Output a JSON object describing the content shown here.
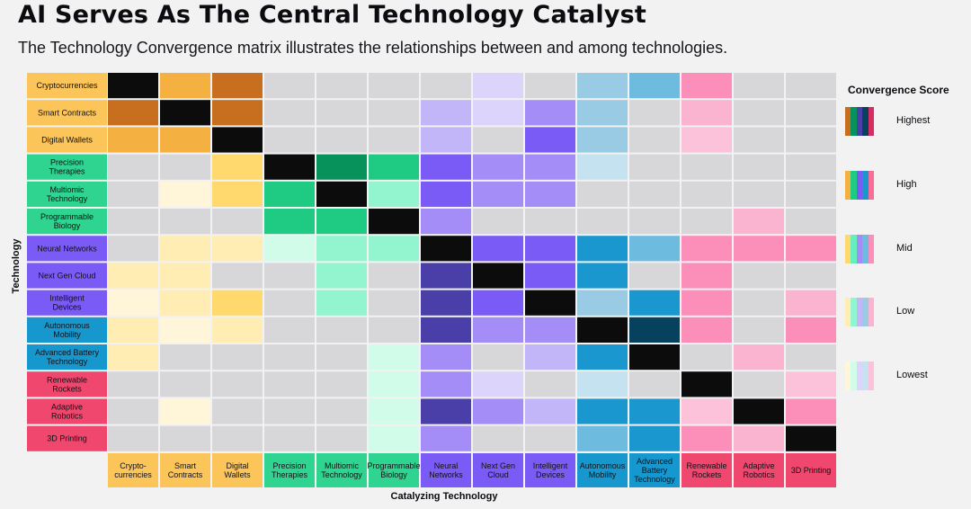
{
  "title": "AI Serves As The Central Technology Catalyst",
  "subtitle": "The Technology Convergence matrix illustrates the relationships between and among technologies.",
  "chart_data": {
    "type": "heatmap",
    "ylabel": "Technology",
    "xlabel": "Catalyzing Technology",
    "rows": [
      {
        "label": "Cryptocurrencies",
        "group": "finance"
      },
      {
        "label": "Smart Contracts",
        "group": "finance"
      },
      {
        "label": "Digital Wallets",
        "group": "finance"
      },
      {
        "label": "Precision Therapies",
        "group": "bio"
      },
      {
        "label": "Multiomic Technology",
        "group": "bio"
      },
      {
        "label": "Programmable Biology",
        "group": "bio"
      },
      {
        "label": "Neural Networks",
        "group": "ai"
      },
      {
        "label": "Next Gen Cloud",
        "group": "ai"
      },
      {
        "label": "Intelligent Devices",
        "group": "ai"
      },
      {
        "label": "Autonomous Mobility",
        "group": "mobility"
      },
      {
        "label": "Advanced Battery Technology",
        "group": "mobility"
      },
      {
        "label": "Renewable Rockets",
        "group": "space"
      },
      {
        "label": "Adaptive Robotics",
        "group": "space"
      },
      {
        "label": "3D Printing",
        "group": "space"
      }
    ],
    "columns": [
      {
        "label": "Crypto- currencies",
        "group": "finance"
      },
      {
        "label": "Smart Contracts",
        "group": "finance"
      },
      {
        "label": "Digital Wallets",
        "group": "finance"
      },
      {
        "label": "Precision Therapies",
        "group": "bio"
      },
      {
        "label": "Multiomic Technology",
        "group": "bio"
      },
      {
        "label": "Programmable Biology",
        "group": "bio"
      },
      {
        "label": "Neural Networks",
        "group": "ai"
      },
      {
        "label": "Next Gen Cloud",
        "group": "ai"
      },
      {
        "label": "Intelligent Devices",
        "group": "ai"
      },
      {
        "label": "Autonomous Mobility",
        "group": "mobility"
      },
      {
        "label": "Advanced Battery Technology",
        "group": "mobility"
      },
      {
        "label": "Renewable Rockets",
        "group": "space"
      },
      {
        "label": "Adaptive Robotics",
        "group": "space"
      },
      {
        "label": "3D Printing",
        "group": "space"
      }
    ],
    "scores": [
      [
        5,
        4,
        5,
        0,
        0,
        0,
        0,
        1,
        0,
        2,
        3,
        3,
        0,
        0
      ],
      [
        5,
        5,
        5,
        0,
        0,
        0,
        2,
        1,
        3,
        2,
        0,
        2,
        0,
        0
      ],
      [
        4,
        4,
        5,
        0,
        0,
        0,
        2,
        0,
        4,
        2,
        0,
        1,
        0,
        0
      ],
      [
        0,
        0,
        3,
        5,
        5,
        4,
        4,
        3,
        3,
        1,
        0,
        0,
        0,
        0
      ],
      [
        0,
        1,
        3,
        4,
        5,
        2,
        4,
        3,
        3,
        0,
        0,
        0,
        0,
        0
      ],
      [
        0,
        0,
        0,
        4,
        4,
        5,
        3,
        0,
        0,
        0,
        0,
        0,
        2,
        0
      ],
      [
        0,
        2,
        2,
        1,
        2,
        2,
        5,
        4,
        4,
        4,
        3,
        3,
        3,
        3
      ],
      [
        2,
        2,
        0,
        0,
        2,
        0,
        5,
        5,
        4,
        4,
        0,
        3,
        0,
        0
      ],
      [
        1,
        2,
        3,
        0,
        2,
        0,
        5,
        4,
        5,
        2,
        4,
        3,
        0,
        2
      ],
      [
        2,
        1,
        2,
        0,
        0,
        0,
        5,
        3,
        3,
        5,
        5,
        3,
        0,
        3
      ],
      [
        2,
        0,
        0,
        0,
        0,
        1,
        3,
        0,
        2,
        4,
        5,
        0,
        2,
        0
      ],
      [
        0,
        0,
        0,
        0,
        0,
        1,
        3,
        1,
        0,
        1,
        0,
        5,
        0,
        1
      ],
      [
        0,
        1,
        0,
        0,
        0,
        1,
        5,
        3,
        2,
        4,
        4,
        1,
        5,
        3
      ],
      [
        0,
        0,
        0,
        0,
        0,
        1,
        3,
        0,
        0,
        3,
        4,
        3,
        2,
        5
      ]
    ],
    "legend": {
      "title": "Convergence Score",
      "levels": [
        {
          "score": 5,
          "label": "Highest"
        },
        {
          "score": 4,
          "label": "High"
        },
        {
          "score": 3,
          "label": "Mid"
        },
        {
          "score": 2,
          "label": "Low"
        },
        {
          "score": 1,
          "label": "Lowest"
        }
      ]
    },
    "groups": {
      "finance": {
        "header": "#fcc55a",
        "1": "#fff6d9",
        "2": "#ffedb4",
        "3": "#ffd96e",
        "4": "#f4b040",
        "5": "#c76e1f"
      },
      "bio": {
        "header": "#2fd490",
        "1": "#d2fcea",
        "2": "#93f5cf",
        "3": "#66eebf",
        "4": "#1fca82",
        "5": "#06925a"
      },
      "ai": {
        "header": "#7b5bf5",
        "1": "#dcd4fa",
        "2": "#c2b5f8",
        "3": "#a48df7",
        "4": "#7b5bf5",
        "5": "#4a3ea8"
      },
      "mobility": {
        "header": "#1698cf",
        "1": "#c4e2ef",
        "2": "#9acbe5",
        "3": "#6dbcdf",
        "4": "#1a97cf",
        "5": "#06425e"
      },
      "space": {
        "header": "#f0476f",
        "1": "#fbc2da",
        "2": "#fbb4cf",
        "3": "#fb8fb9",
        "4": "#fb6c97",
        "5": "#d92c62"
      }
    },
    "cell_empty": "#d7d7da",
    "cell_self": "#0c0c0d"
  }
}
